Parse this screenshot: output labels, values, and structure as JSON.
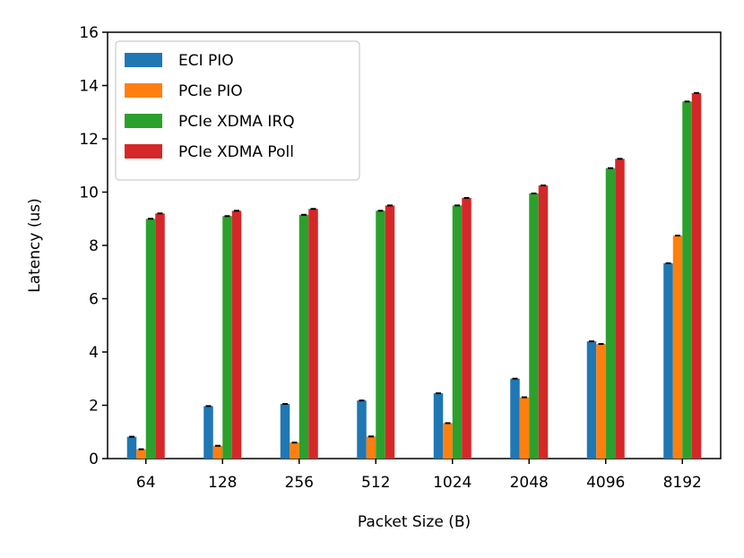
{
  "chart_data": {
    "type": "bar",
    "title": "",
    "xlabel": "Packet Size (B)",
    "ylabel": "Latency (us)",
    "ylim": [
      0,
      16
    ],
    "yticks": [
      0,
      2,
      4,
      6,
      8,
      10,
      12,
      14,
      16
    ],
    "categories": [
      "64",
      "128",
      "256",
      "512",
      "1024",
      "2048",
      "4096",
      "8192"
    ],
    "legend_position": "upper-left",
    "series": [
      {
        "name": "ECI PIO",
        "color": "#1f77b4",
        "values": [
          0.82,
          1.97,
          2.05,
          2.18,
          2.45,
          3.0,
          4.4,
          7.33
        ]
      },
      {
        "name": "PCIe PIO",
        "color": "#ff7f0e",
        "values": [
          0.35,
          0.48,
          0.6,
          0.83,
          1.33,
          2.3,
          4.3,
          8.37
        ]
      },
      {
        "name": "PCIe XDMA IRQ",
        "color": "#2ca02c",
        "values": [
          9.0,
          9.1,
          9.15,
          9.3,
          9.5,
          9.95,
          10.9,
          13.4
        ]
      },
      {
        "name": "PCIe XDMA Poll",
        "color": "#d62728",
        "values": [
          9.2,
          9.3,
          9.37,
          9.5,
          9.78,
          10.25,
          11.25,
          13.72
        ]
      }
    ]
  }
}
